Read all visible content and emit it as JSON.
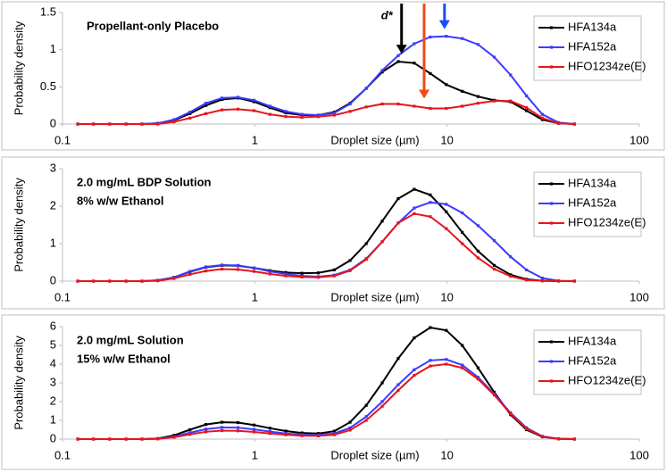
{
  "chart_data": [
    {
      "type": "line",
      "title_lines": [
        "Propellant-only Placebo"
      ],
      "x_label": "Droplet size (µm)",
      "y_label": "Probability density",
      "log_x": true,
      "xlim": [
        0.1,
        100
      ],
      "xticks": [
        0.1,
        1,
        10,
        100
      ],
      "ylim": [
        0,
        1.5
      ],
      "yticks": [
        0,
        0.5,
        1,
        1.5
      ],
      "legend": "upper right",
      "x": [
        0.12,
        0.145,
        0.176,
        0.214,
        0.259,
        0.313,
        0.38,
        0.46,
        0.557,
        0.675,
        0.818,
        0.991,
        1.2,
        1.45,
        1.76,
        2.14,
        2.59,
        3.13,
        3.8,
        4.6,
        5.57,
        6.75,
        8.18,
        9.91,
        12,
        14.5,
        17.6,
        21.4,
        25.9,
        31.3,
        38,
        46
      ],
      "series": [
        {
          "name": "HFA134a",
          "color": "#000000",
          "values": [
            0,
            0,
            0,
            0,
            0,
            0.01,
            0.05,
            0.14,
            0.25,
            0.33,
            0.35,
            0.3,
            0.22,
            0.15,
            0.12,
            0.12,
            0.16,
            0.28,
            0.48,
            0.7,
            0.84,
            0.82,
            0.68,
            0.53,
            0.44,
            0.37,
            0.32,
            0.3,
            0.18,
            0.06,
            0.01,
            0
          ]
        },
        {
          "name": "HFA152a",
          "color": "#3b3bff",
          "values": [
            0,
            0,
            0,
            0,
            0,
            0.01,
            0.06,
            0.16,
            0.28,
            0.35,
            0.36,
            0.32,
            0.24,
            0.17,
            0.13,
            0.12,
            0.15,
            0.27,
            0.48,
            0.72,
            0.92,
            1.08,
            1.17,
            1.18,
            1.15,
            1.07,
            0.9,
            0.66,
            0.38,
            0.13,
            0.02,
            0
          ]
        },
        {
          "name": "HFO1234ze(E)",
          "color": "#e8141c",
          "values": [
            0,
            0,
            0,
            0,
            0,
            0,
            0.03,
            0.08,
            0.14,
            0.19,
            0.2,
            0.18,
            0.13,
            0.1,
            0.09,
            0.1,
            0.12,
            0.17,
            0.23,
            0.27,
            0.27,
            0.24,
            0.21,
            0.21,
            0.24,
            0.28,
            0.31,
            0.31,
            0.22,
            0.08,
            0.01,
            0
          ]
        }
      ],
      "annotation": "d*",
      "arrows": [
        {
          "x": 5.8,
          "color": "#000000"
        },
        {
          "x": 7.6,
          "color": "#f04a1a"
        },
        {
          "x": 9.7,
          "color": "#1a4cff"
        }
      ]
    },
    {
      "type": "line",
      "title_lines": [
        "2.0 mg/mL BDP Solution",
        "8% w/w Ethanol"
      ],
      "x_label": "Droplet size (µm)",
      "y_label": "Probability density",
      "log_x": true,
      "xlim": [
        0.1,
        100
      ],
      "xticks": [
        0.1,
        1,
        10,
        100
      ],
      "ylim": [
        0,
        3
      ],
      "yticks": [
        0,
        1,
        2,
        3
      ],
      "legend": "upper right",
      "x": [
        0.12,
        0.145,
        0.176,
        0.214,
        0.259,
        0.313,
        0.38,
        0.46,
        0.557,
        0.675,
        0.818,
        0.991,
        1.2,
        1.45,
        1.76,
        2.14,
        2.59,
        3.13,
        3.8,
        4.6,
        5.57,
        6.75,
        8.18,
        9.91,
        12,
        14.5,
        17.6,
        21.4,
        25.9,
        31.3,
        38,
        46
      ],
      "series": [
        {
          "name": "HFA134a",
          "color": "#000000",
          "values": [
            0,
            0,
            0,
            0,
            0,
            0.02,
            0.1,
            0.25,
            0.37,
            0.42,
            0.41,
            0.35,
            0.28,
            0.23,
            0.21,
            0.22,
            0.3,
            0.55,
            1.0,
            1.6,
            2.2,
            2.45,
            2.3,
            1.85,
            1.3,
            0.8,
            0.42,
            0.17,
            0.05,
            0.01,
            0,
            0
          ]
        },
        {
          "name": "HFA152a",
          "color": "#3b3bff",
          "values": [
            0,
            0,
            0,
            0,
            0,
            0.02,
            0.1,
            0.26,
            0.38,
            0.43,
            0.42,
            0.35,
            0.26,
            0.19,
            0.14,
            0.12,
            0.16,
            0.3,
            0.6,
            1.05,
            1.55,
            1.95,
            2.1,
            2.05,
            1.82,
            1.48,
            1.08,
            0.65,
            0.3,
            0.08,
            0.01,
            0
          ]
        },
        {
          "name": "HFO1234ze(E)",
          "color": "#e8141c",
          "values": [
            0,
            0,
            0,
            0,
            0,
            0.01,
            0.07,
            0.18,
            0.27,
            0.32,
            0.31,
            0.26,
            0.19,
            0.14,
            0.11,
            0.1,
            0.14,
            0.28,
            0.58,
            1.05,
            1.55,
            1.8,
            1.72,
            1.4,
            1.0,
            0.62,
            0.32,
            0.13,
            0.03,
            0.01,
            0,
            0
          ]
        }
      ]
    },
    {
      "type": "line",
      "title_lines": [
        "2.0 mg/mL Solution",
        "15% w/w Ethanol"
      ],
      "x_label": "Droplet size (µm)",
      "y_label": "Probability density",
      "log_x": true,
      "xlim": [
        0.1,
        100
      ],
      "xticks": [
        0.1,
        1,
        10,
        100
      ],
      "ylim": [
        0,
        6
      ],
      "yticks": [
        0,
        1,
        2,
        3,
        4,
        5,
        6
      ],
      "legend": "upper right",
      "x": [
        0.12,
        0.145,
        0.176,
        0.214,
        0.259,
        0.313,
        0.38,
        0.46,
        0.557,
        0.675,
        0.818,
        0.991,
        1.2,
        1.45,
        1.76,
        2.14,
        2.59,
        3.13,
        3.8,
        4.6,
        5.57,
        6.75,
        8.18,
        9.91,
        12,
        14.5,
        17.6,
        21.4,
        25.9,
        31.3,
        38,
        46
      ],
      "series": [
        {
          "name": "HFA134a",
          "color": "#000000",
          "values": [
            0,
            0,
            0,
            0,
            0,
            0.03,
            0.2,
            0.5,
            0.78,
            0.9,
            0.88,
            0.75,
            0.58,
            0.43,
            0.33,
            0.3,
            0.42,
            0.9,
            1.8,
            3.0,
            4.3,
            5.4,
            5.95,
            5.8,
            5.0,
            3.8,
            2.5,
            1.3,
            0.5,
            0.12,
            0.01,
            0
          ]
        },
        {
          "name": "HFA152a",
          "color": "#3b3bff",
          "values": [
            0,
            0,
            0,
            0,
            0,
            0.02,
            0.13,
            0.34,
            0.53,
            0.62,
            0.61,
            0.52,
            0.4,
            0.3,
            0.24,
            0.22,
            0.3,
            0.6,
            1.2,
            2.0,
            2.9,
            3.7,
            4.2,
            4.25,
            3.95,
            3.3,
            2.4,
            1.4,
            0.6,
            0.15,
            0.02,
            0
          ]
        },
        {
          "name": "HFO1234ze(E)",
          "color": "#e8141c",
          "values": [
            0,
            0,
            0,
            0,
            0,
            0.01,
            0.1,
            0.25,
            0.39,
            0.45,
            0.44,
            0.38,
            0.3,
            0.23,
            0.18,
            0.17,
            0.23,
            0.48,
            1.0,
            1.75,
            2.6,
            3.4,
            3.9,
            4.0,
            3.8,
            3.2,
            2.35,
            1.35,
            0.55,
            0.13,
            0.01,
            0
          ]
        }
      ]
    }
  ]
}
